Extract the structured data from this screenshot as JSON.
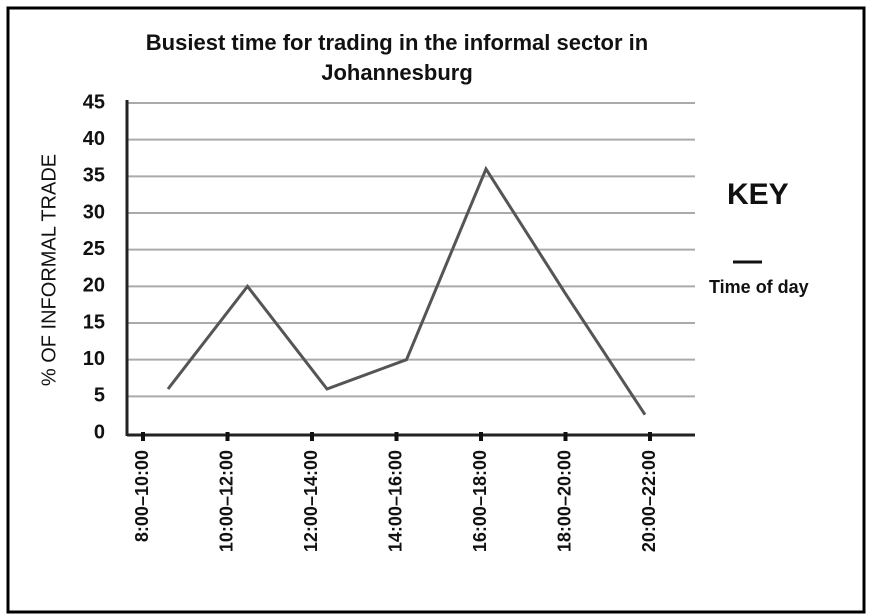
{
  "chart_data": {
    "type": "line",
    "title": "Busiest time for trading in the informal sector in Johannesburg",
    "y_label": "% OF INFORMAL TRADE",
    "categories": [
      "8:00–10:00",
      "10:00–12:00",
      "12:00–14:00",
      "14:00–16:00",
      "16:00–18:00",
      "18:00–20:00",
      "20:00–22:00"
    ],
    "series": [
      {
        "name": "Time of day",
        "color": "#555555",
        "values": [
          6,
          20,
          6,
          10,
          36,
          19,
          2.5
        ]
      }
    ],
    "ylim": [
      0,
      45
    ],
    "yticks": [
      0,
      5,
      10,
      15,
      20,
      25,
      30,
      35,
      40,
      45
    ],
    "grid": true,
    "legend_title": "KEY",
    "legend_position": "right"
  }
}
